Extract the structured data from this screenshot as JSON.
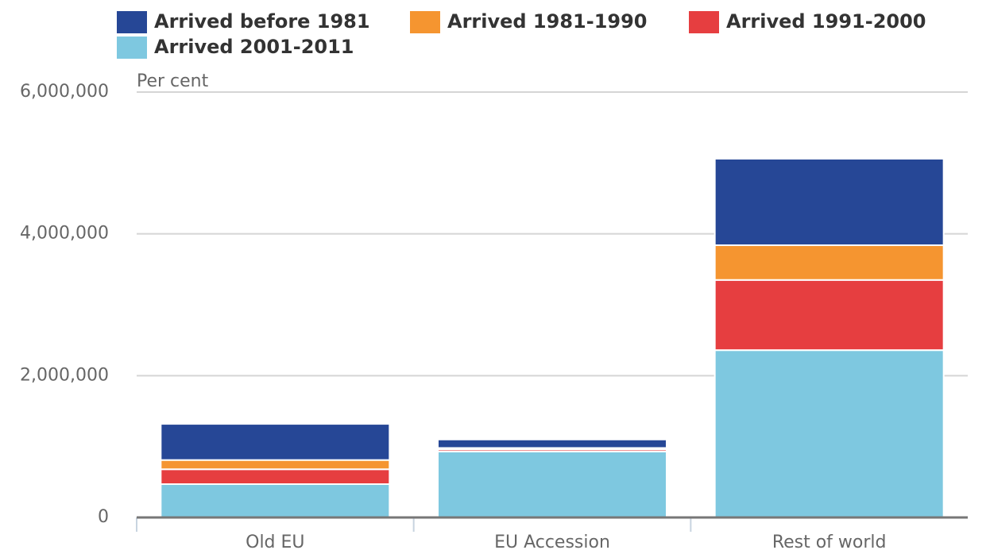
{
  "chart_data": {
    "type": "stacked_bar",
    "y_label": "Per cent",
    "categories": [
      "Old EU",
      "EU Accession",
      "Rest of world"
    ],
    "series": [
      {
        "name": "Arrived before 1981",
        "color": "#264796",
        "values": [
          510000,
          120000,
          1220000
        ]
      },
      {
        "name": "Arrived 1981-1990",
        "color": "#f59530",
        "values": [
          130000,
          20000,
          490000
        ]
      },
      {
        "name": "Arrived 1991-2000",
        "color": "#e63e40",
        "values": [
          210000,
          30000,
          990000
        ]
      },
      {
        "name": "Arrived 2001-2011",
        "color": "#7ec8e0",
        "values": [
          470000,
          930000,
          2360000
        ]
      }
    ],
    "ylim": [
      0,
      6000000
    ],
    "yticks": [
      0,
      {
        "value": 2000000,
        "label": "2,000,000"
      },
      {
        "value": 4000000,
        "label": "4,000,000"
      },
      {
        "value": 6000000,
        "label": "6,000,000"
      }
    ],
    "grid": true
  }
}
